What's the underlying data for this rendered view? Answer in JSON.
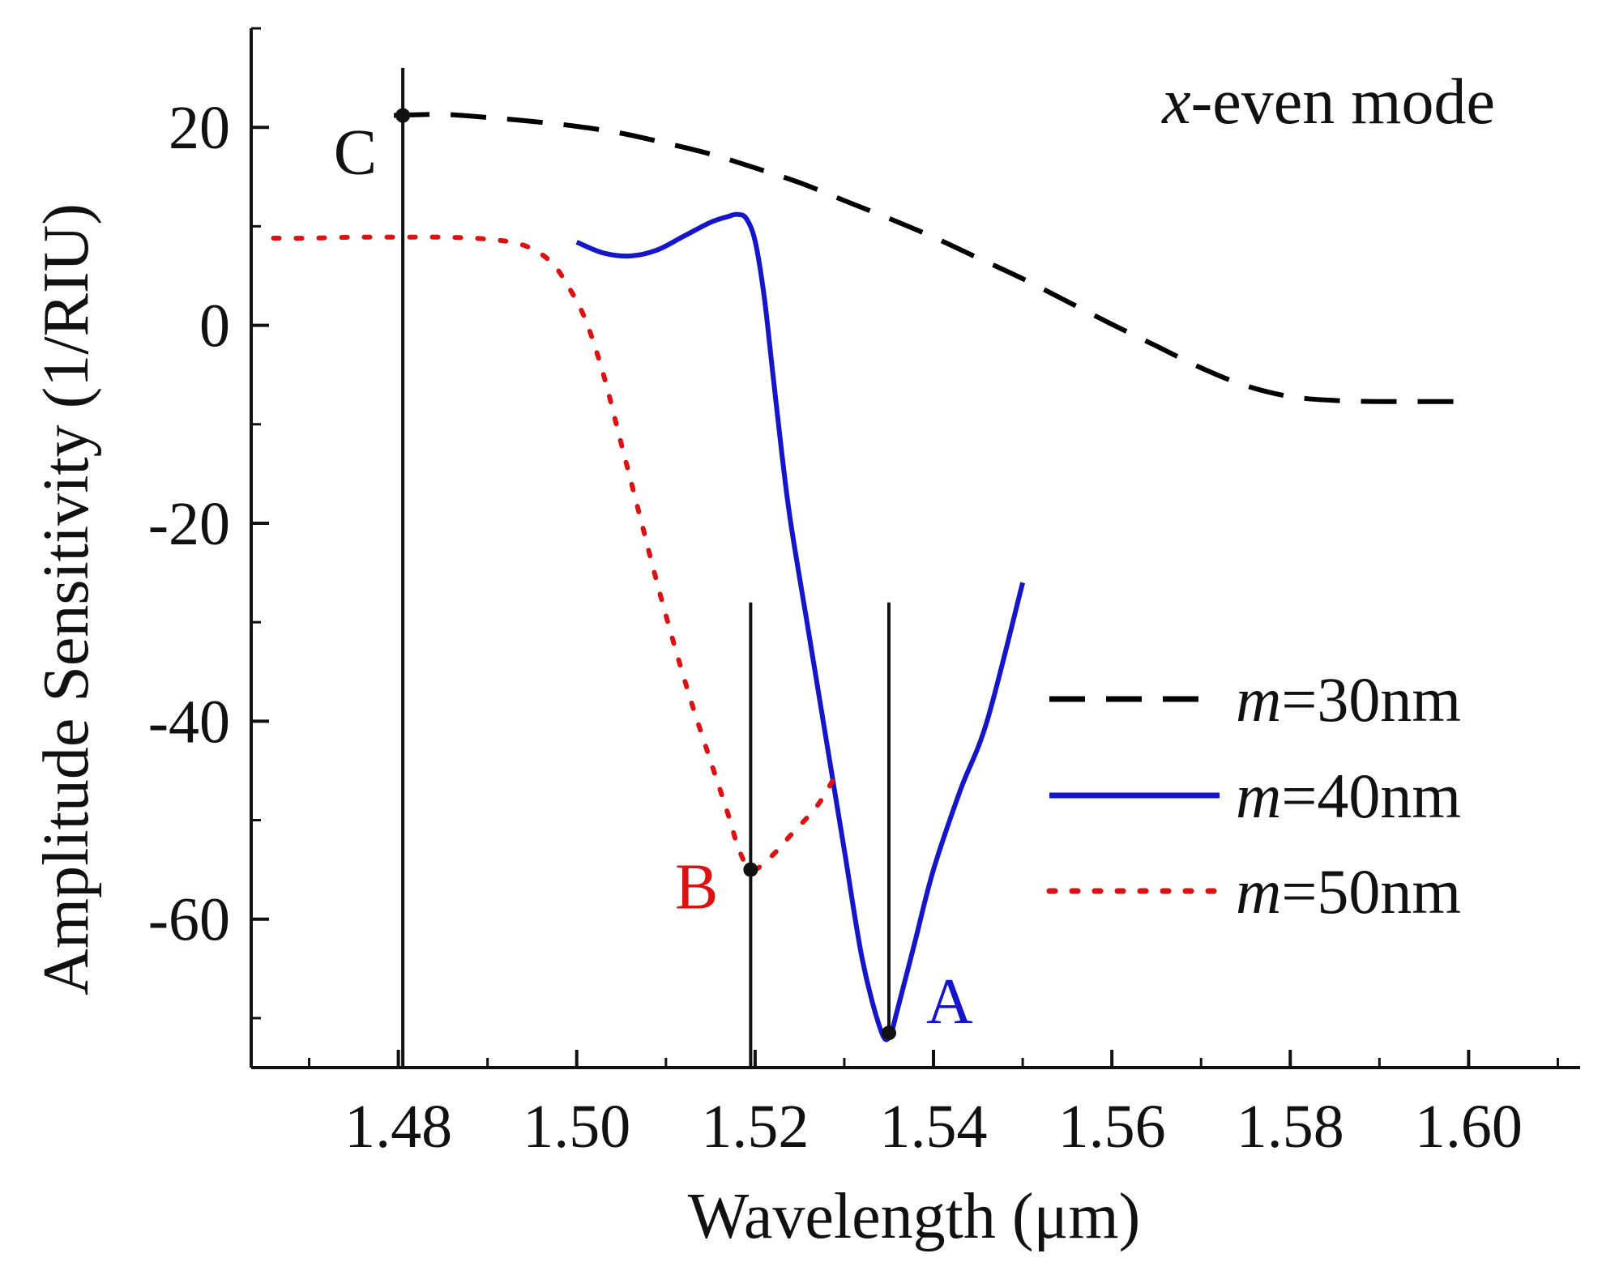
{
  "chart_data": {
    "type": "line",
    "title": "",
    "xlabel": "Wavelength (μm)",
    "ylabel": "Amplitude Sensitivity (1/RIU)",
    "xlim": [
      1.4635,
      1.6125
    ],
    "ylim": [
      -75,
      30
    ],
    "xticks": [
      1.48,
      1.5,
      1.52,
      1.54,
      1.56,
      1.58,
      1.6
    ],
    "xtick_labels": [
      "1.48",
      "1.50",
      "1.52",
      "1.54",
      "1.56",
      "1.58",
      "1.60"
    ],
    "yticks": [
      20,
      0,
      -20,
      -40,
      -60
    ],
    "ytick_labels": [
      "20",
      "0",
      "-20",
      "-40",
      "-60"
    ],
    "grid": false,
    "legend_position": "bottom-right",
    "mode_label": {
      "prefix": "x",
      "text": "-even mode"
    },
    "series": [
      {
        "name": "m=30nm",
        "legend_prefix": "m",
        "legend_suffix": "=30nm",
        "color": "#000000",
        "style": "dashed",
        "x": [
          1.4795,
          1.485,
          1.49,
          1.495,
          1.5,
          1.505,
          1.51,
          1.515,
          1.52,
          1.525,
          1.53,
          1.535,
          1.54,
          1.545,
          1.55,
          1.555,
          1.56,
          1.565,
          1.57,
          1.575,
          1.58,
          1.585,
          1.59,
          1.595,
          1.6
        ],
        "y": [
          21.2,
          21.3,
          21.0,
          20.6,
          20.1,
          19.4,
          18.4,
          17.3,
          15.9,
          14.4,
          12.6,
          10.8,
          8.9,
          6.8,
          4.7,
          2.4,
          0.1,
          -2.1,
          -4.3,
          -6.1,
          -7.2,
          -7.6,
          -7.7,
          -7.7,
          -7.7
        ]
      },
      {
        "name": "m=40nm",
        "legend_prefix": "m",
        "legend_suffix": "=40nm",
        "color": "#1515cc",
        "style": "solid",
        "x": [
          1.5,
          1.503,
          1.506,
          1.509,
          1.512,
          1.515,
          1.517,
          1.518,
          1.519,
          1.52,
          1.521,
          1.522,
          1.523,
          1.524,
          1.526,
          1.528,
          1.53,
          1.532,
          1.534,
          1.535,
          1.536,
          1.538,
          1.54,
          1.543,
          1.546,
          1.55
        ],
        "y": [
          8.4,
          7.3,
          7.0,
          7.6,
          9.0,
          10.4,
          11.0,
          11.2,
          10.8,
          8.5,
          3.0,
          -5.0,
          -13.0,
          -20.0,
          -31.0,
          -42.0,
          -53.0,
          -64.0,
          -71.0,
          -72.0,
          -69.0,
          -62.0,
          -55.0,
          -47.0,
          -40.0,
          -26.0
        ]
      },
      {
        "name": "m=50nm",
        "legend_prefix": "m",
        "legend_suffix": "=50nm",
        "color": "#dd1111",
        "style": "dotted",
        "x": [
          1.466,
          1.47,
          1.475,
          1.48,
          1.485,
          1.49,
          1.494,
          1.497,
          1.499,
          1.501,
          1.503,
          1.505,
          1.507,
          1.509,
          1.511,
          1.513,
          1.515,
          1.517,
          1.518,
          1.519,
          1.52,
          1.522,
          1.524,
          1.527,
          1.529
        ],
        "y": [
          8.8,
          8.8,
          8.9,
          8.9,
          8.9,
          8.7,
          8.1,
          6.5,
          4.0,
          0.5,
          -5.0,
          -12.0,
          -19.0,
          -26.0,
          -32.5,
          -38.5,
          -44.0,
          -49.5,
          -52.5,
          -54.5,
          -55.0,
          -53.5,
          -51.5,
          -48.5,
          -45.5
        ]
      }
    ],
    "markers": [
      {
        "label": "C",
        "x": 1.4805,
        "y": 21.2,
        "color": "#111111",
        "line_top": 26.0,
        "line_bottom": -75.0
      },
      {
        "label": "B",
        "x": 1.5195,
        "y": -55.0,
        "color": "#dd1111",
        "line_top": -28.0,
        "line_bottom": -75.0
      },
      {
        "label": "A",
        "x": 1.535,
        "y": -71.5,
        "color": "#1515cc",
        "line_top": -28.0,
        "line_bottom": -71.5
      }
    ]
  }
}
